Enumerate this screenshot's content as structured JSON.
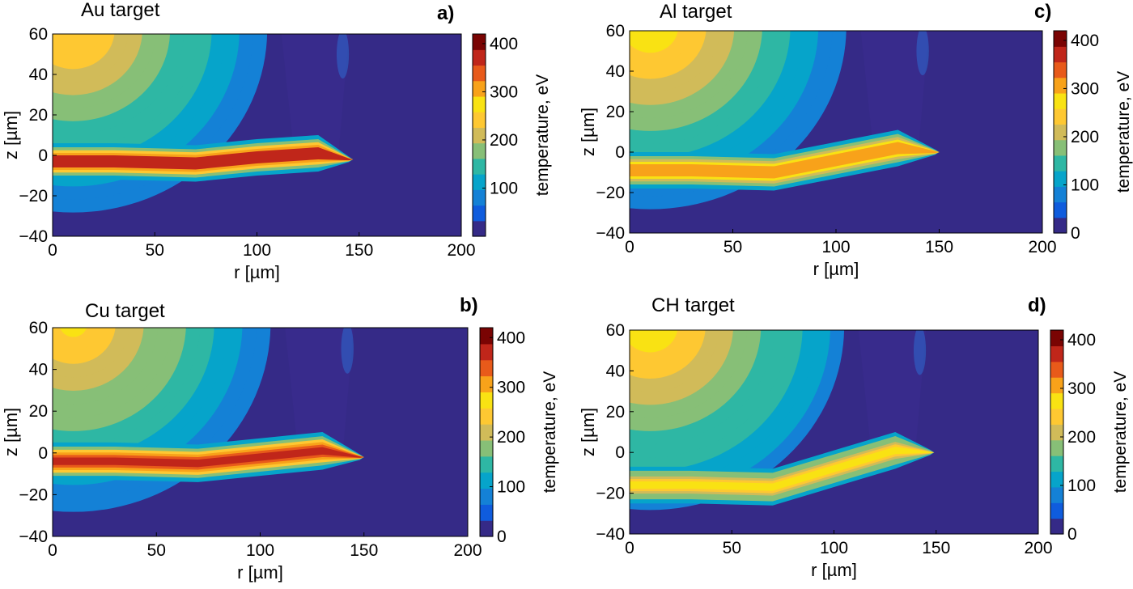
{
  "figure": {
    "colormap": [
      "#352a87",
      "#0f5cdd",
      "#1481d6",
      "#06a4ca",
      "#2eb7a4",
      "#87bf77",
      "#d1bb59",
      "#fec832",
      "#f9e213",
      "#f8a21a",
      "#e85a1a",
      "#c0261a",
      "#7a0403"
    ],
    "background_color": "#352a87"
  },
  "chart_data": [
    {
      "type": "heatmap",
      "panel_label": "a)",
      "title": "Au target",
      "xlabel": "r [µm]",
      "ylabel": "z [µm]",
      "xlim": [
        0,
        200
      ],
      "ylim": [
        -40,
        60
      ],
      "xticks": [
        "0",
        "50",
        "100",
        "150",
        "200"
      ],
      "yticks": [
        "-40",
        "-20",
        "0",
        "20",
        "40",
        "60"
      ],
      "colorbar": {
        "label": "temperature, eV",
        "range": [
          0,
          420
        ],
        "ticks": [
          "400",
          "300",
          "200",
          "100"
        ]
      },
      "features": {
        "corona": {
          "center_r": 10,
          "center_z": 62,
          "radius": 95,
          "peak_eV": 260
        },
        "jet": {
          "r_start": 0,
          "r_end": 145,
          "centerline_z": [
            [
              0,
              -3
            ],
            [
              30,
              -3
            ],
            [
              70,
              -4
            ],
            [
              100,
              -1
            ],
            [
              130,
              1
            ],
            [
              145,
              -2
            ]
          ],
          "peak_eV": 400
        }
      }
    },
    {
      "type": "heatmap",
      "panel_label": "b)",
      "title": "Cu target",
      "xlabel": "r [µm]",
      "ylabel": "z [µm]",
      "xlim": [
        0,
        200
      ],
      "ylim": [
        -40,
        60
      ],
      "xticks": [
        "0",
        "50",
        "100",
        "150",
        "200"
      ],
      "yticks": [
        "-40",
        "-20",
        "0",
        "20",
        "40",
        "60"
      ],
      "colorbar": {
        "label": "temperature, eV",
        "range": [
          0,
          420
        ],
        "ticks": [
          "400",
          "300",
          "200",
          "100",
          "0"
        ]
      },
      "features": {
        "corona": {
          "center_r": 10,
          "center_z": 62,
          "radius": 95,
          "peak_eV": 270
        },
        "jet": {
          "r_start": 0,
          "r_end": 148,
          "centerline_z": [
            [
              0,
              -4
            ],
            [
              30,
              -4
            ],
            [
              70,
              -5
            ],
            [
              100,
              -2
            ],
            [
              130,
              1
            ],
            [
              148,
              -2
            ]
          ],
          "peak_eV": 390
        }
      }
    },
    {
      "type": "heatmap",
      "panel_label": "c)",
      "title": "Al target",
      "xlabel": "r [µm]",
      "ylabel": "z [µm]",
      "xlim": [
        0,
        200
      ],
      "ylim": [
        -40,
        60
      ],
      "xticks": [
        "0",
        "50",
        "100",
        "150",
        "200"
      ],
      "yticks": [
        "-40",
        "-20",
        "0",
        "20",
        "40",
        "60"
      ],
      "colorbar": {
        "label": "temperature, eV",
        "range": [
          0,
          420
        ],
        "ticks": [
          "400",
          "300",
          "200",
          "100",
          "0"
        ]
      },
      "features": {
        "corona": {
          "center_r": 10,
          "center_z": 62,
          "radius": 95,
          "peak_eV": 280
        },
        "jet": {
          "r_start": 0,
          "r_end": 148,
          "centerline_z": [
            [
              0,
              -9
            ],
            [
              30,
              -9
            ],
            [
              70,
              -10
            ],
            [
              100,
              -4
            ],
            [
              130,
              2
            ],
            [
              148,
              0
            ]
          ],
          "peak_eV": 330
        }
      }
    },
    {
      "type": "heatmap",
      "panel_label": "d)",
      "title": "CH target",
      "xlabel": "r [µm]",
      "ylabel": "z [µm]",
      "xlim": [
        0,
        200
      ],
      "ylim": [
        -40,
        60
      ],
      "xticks": [
        "0",
        "50",
        "100",
        "150",
        "200"
      ],
      "yticks": [
        "-40",
        "-20",
        "0",
        "20",
        "40",
        "60"
      ],
      "colorbar": {
        "label": "temperature, eV",
        "range": [
          0,
          420
        ],
        "ticks": [
          "400",
          "300",
          "200",
          "100",
          "0"
        ]
      },
      "features": {
        "corona": {
          "center_r": 10,
          "center_z": 62,
          "radius": 95,
          "peak_eV": 290
        },
        "jet": {
          "r_start": 0,
          "r_end": 147,
          "centerline_z": [
            [
              0,
              -16
            ],
            [
              30,
              -16
            ],
            [
              70,
              -17
            ],
            [
              100,
              -8
            ],
            [
              130,
              1
            ],
            [
              147,
              0
            ]
          ],
          "peak_eV": 280
        }
      }
    }
  ]
}
